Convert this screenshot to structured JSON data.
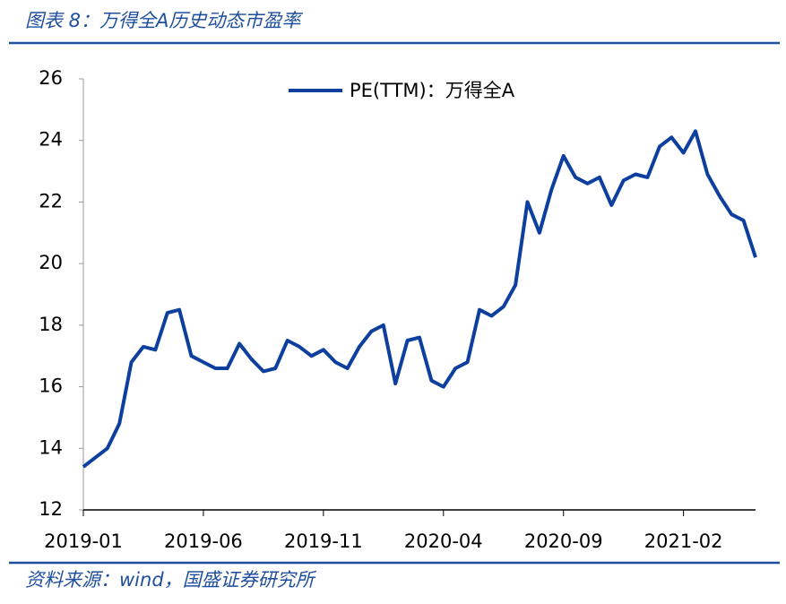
{
  "header": {
    "title": "图表 8：万得全A历史动态市盈率"
  },
  "chart_data": {
    "type": "line",
    "categories": [
      "2019-01",
      null,
      null,
      null,
      null,
      null,
      null,
      null,
      null,
      null,
      "2019-06",
      null,
      null,
      null,
      null,
      null,
      null,
      null,
      null,
      null,
      "2019-11",
      null,
      null,
      null,
      null,
      null,
      null,
      null,
      null,
      null,
      "2020-04",
      null,
      null,
      null,
      null,
      null,
      null,
      null,
      null,
      null,
      "2020-09",
      null,
      null,
      null,
      null,
      null,
      null,
      null,
      null,
      null,
      "2021-02",
      null,
      null,
      null,
      null,
      null,
      null
    ],
    "series": [
      {
        "name": "PE(TTM)：万得全A",
        "color": "#0d3f9e",
        "values": [
          13.4,
          13.7,
          14.0,
          14.8,
          16.8,
          17.3,
          17.2,
          18.4,
          18.5,
          17.0,
          16.8,
          16.6,
          16.6,
          17.4,
          16.9,
          16.5,
          16.6,
          17.5,
          17.3,
          17.0,
          17.2,
          16.8,
          16.6,
          17.3,
          17.8,
          18.0,
          16.1,
          17.5,
          17.6,
          16.2,
          16.0,
          16.6,
          16.8,
          18.5,
          18.3,
          18.6,
          19.3,
          22.0,
          21.0,
          22.4,
          23.5,
          22.8,
          22.6,
          22.8,
          21.9,
          22.7,
          22.9,
          22.8,
          23.8,
          24.1,
          23.6,
          24.3,
          22.9,
          22.2,
          21.6,
          21.4,
          20.2
        ]
      }
    ],
    "ylim": [
      12,
      26
    ],
    "yticks": [
      12,
      14,
      16,
      18,
      20,
      22,
      24,
      26
    ],
    "legend": "top"
  },
  "footer": {
    "source": "资料来源：wind，国盛证券研究所"
  }
}
